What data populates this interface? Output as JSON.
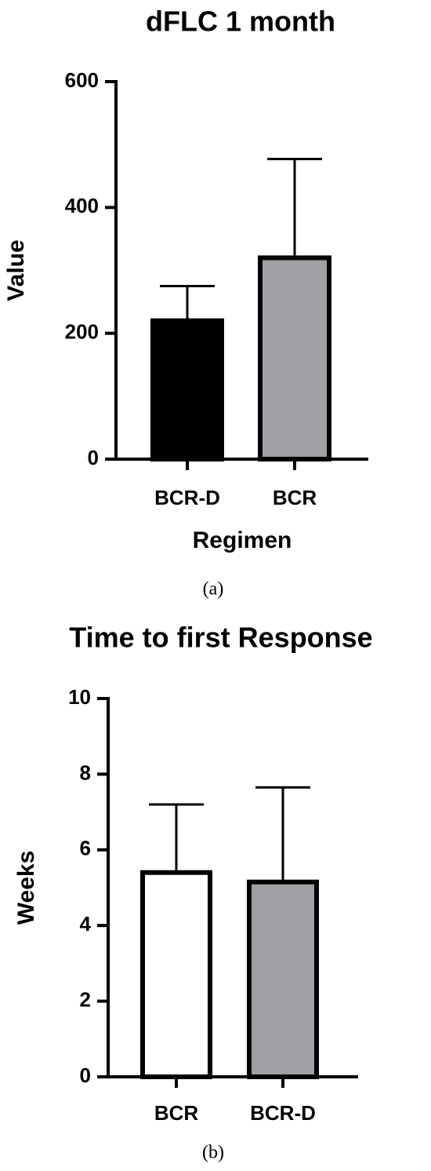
{
  "chart_data": [
    {
      "type": "bar",
      "title": "dFLC 1 month",
      "y_label": "Value",
      "x_label": "Regimen",
      "panel_label": "(a)",
      "categories": [
        "BCR-D",
        "BCR"
      ],
      "values": [
        220,
        320
      ],
      "errors": [
        55,
        157
      ],
      "colors": [
        "#000000",
        "#a0a0a4"
      ],
      "ylim": [
        0,
        600
      ],
      "yticks": [
        0,
        200,
        400,
        600
      ]
    },
    {
      "type": "bar",
      "title": "Time to first Response",
      "y_label": "Weeks",
      "panel_label": "(b)",
      "categories": [
        "BCR",
        "BCR-D"
      ],
      "values": [
        5.4,
        5.15
      ],
      "errors": [
        1.8,
        2.5
      ],
      "colors": [
        "#ffffff",
        "#a0a0a4"
      ],
      "ylim": [
        0,
        10
      ],
      "yticks": [
        0,
        2,
        4,
        6,
        8,
        10
      ]
    }
  ]
}
